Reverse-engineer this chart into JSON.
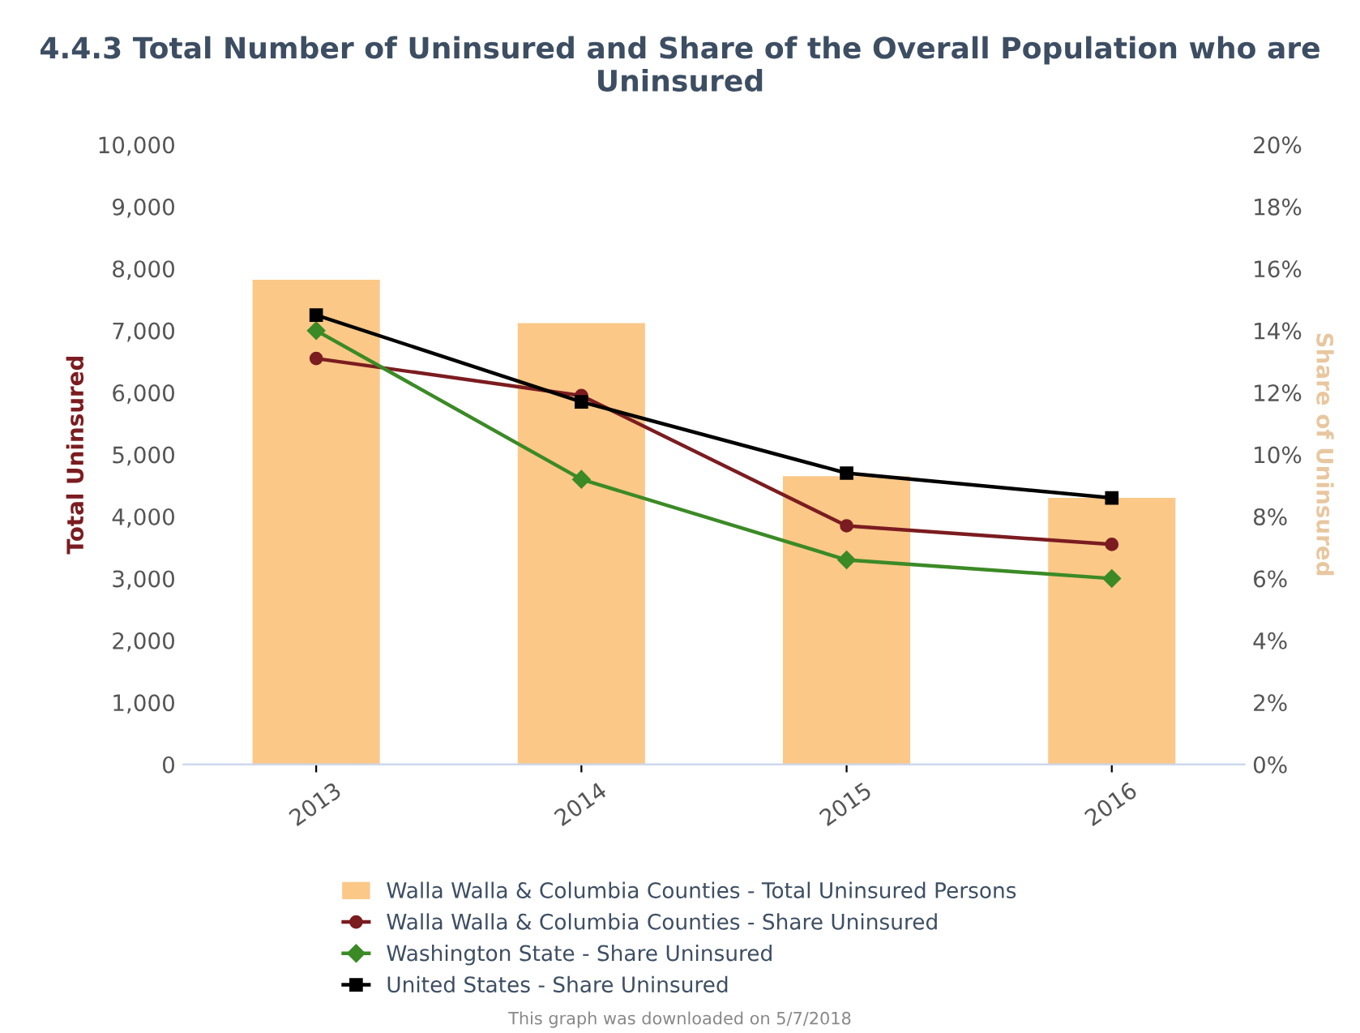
{
  "chart_data": {
    "type": "bar",
    "title": "4.4.3 Total Number of Uninsured and Share of the Overall Population who are Uninsured",
    "categories": [
      "2013",
      "2014",
      "2015",
      "2016"
    ],
    "series": [
      {
        "name": "Walla Walla & Columbia Counties - Total Uninsured Persons",
        "color": "#fbc888",
        "values": [
          7820,
          7120,
          4650,
          4300
        ]
      },
      {
        "name": "Walla Walla & Columbia Counties - Share Uninsured",
        "type": "line",
        "axis": "y2",
        "color": "#7b1c20",
        "marker": "circle",
        "values": [
          13.1,
          11.9,
          7.7,
          7.1
        ]
      },
      {
        "name": "Washington State - Share Uninsured",
        "type": "line",
        "axis": "y2",
        "color": "#3b8a26",
        "marker": "diamond",
        "values": [
          14.0,
          9.2,
          6.6,
          6.0
        ]
      },
      {
        "name": "United States - Share Uninsured",
        "type": "line",
        "axis": "y2",
        "color": "#000000",
        "marker": "square",
        "values": [
          14.5,
          11.7,
          9.4,
          8.6
        ]
      }
    ],
    "ylabel": "Total Uninsured",
    "y2label": "Share of Uninsured",
    "ylim": [
      0,
      10000
    ],
    "yticks": [
      {
        "value": 0,
        "label": "0"
      },
      {
        "value": 1000,
        "label": "1,000"
      },
      {
        "value": 2000,
        "label": "2,000"
      },
      {
        "value": 3000,
        "label": "3,000"
      },
      {
        "value": 4000,
        "label": "4,000"
      },
      {
        "value": 5000,
        "label": "5,000"
      },
      {
        "value": 6000,
        "label": "6,000"
      },
      {
        "value": 7000,
        "label": "7,000"
      },
      {
        "value": 8000,
        "label": "8,000"
      },
      {
        "value": 9000,
        "label": "9,000"
      },
      {
        "value": 10000,
        "label": "10,000"
      }
    ],
    "y2lim": [
      0,
      20
    ],
    "y2ticks": [
      {
        "value": 0,
        "label": "0%"
      },
      {
        "value": 2,
        "label": "2%"
      },
      {
        "value": 4,
        "label": "4%"
      },
      {
        "value": 6,
        "label": "6%"
      },
      {
        "value": 8,
        "label": "8%"
      },
      {
        "value": 10,
        "label": "10%"
      },
      {
        "value": 12,
        "label": "12%"
      },
      {
        "value": 14,
        "label": "14%"
      },
      {
        "value": 16,
        "label": "16%"
      },
      {
        "value": 18,
        "label": "18%"
      },
      {
        "value": 20,
        "label": "20%"
      }
    ],
    "legend": "bottom",
    "grid": false,
    "annotations": [
      "This graph was downloaded on 5/7/2018"
    ]
  }
}
